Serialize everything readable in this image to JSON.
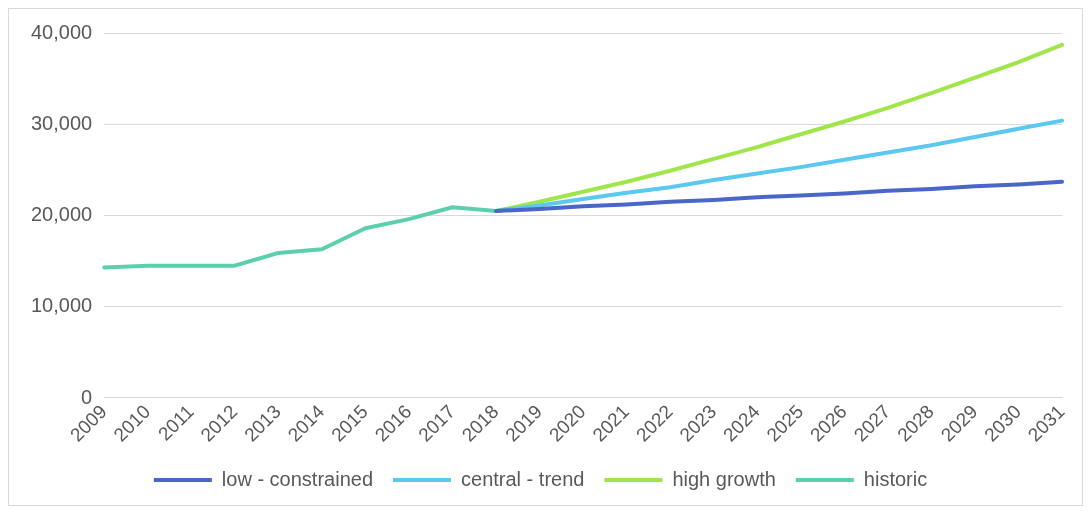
{
  "chart_data": {
    "type": "line",
    "categories": [
      "2009",
      "2010",
      "2011",
      "2012",
      "2013",
      "2014",
      "2015",
      "2016",
      "2017",
      "2018",
      "2019",
      "2020",
      "2021",
      "2022",
      "2023",
      "2024",
      "2025",
      "2026",
      "2027",
      "2028",
      "2029",
      "2030",
      "2031"
    ],
    "series": [
      {
        "name": "low - constrained",
        "color": "#4a66c8",
        "values": [
          null,
          null,
          null,
          null,
          null,
          null,
          null,
          null,
          null,
          20500,
          20700,
          21000,
          21200,
          21500,
          21700,
          22000,
          22200,
          22400,
          22700,
          22900,
          23200,
          23400,
          23700
        ]
      },
      {
        "name": "central - trend",
        "color": "#5bc8f0",
        "values": [
          null,
          null,
          null,
          null,
          null,
          null,
          null,
          null,
          null,
          20500,
          21100,
          21800,
          22500,
          23100,
          23900,
          24600,
          25300,
          26100,
          26900,
          27700,
          28600,
          29500,
          30400
        ]
      },
      {
        "name": "high growth",
        "color": "#a0e64a",
        "values": [
          null,
          null,
          null,
          null,
          null,
          null,
          null,
          null,
          null,
          20500,
          21500,
          22600,
          23700,
          24900,
          26200,
          27500,
          28900,
          30300,
          31800,
          33400,
          35100,
          36800,
          38700
        ]
      },
      {
        "name": "historic",
        "color": "#5ccfae",
        "values": [
          14300,
          14500,
          14500,
          14500,
          15900,
          16300,
          18600,
          19600,
          20900,
          20500,
          null,
          null,
          null,
          null,
          null,
          null,
          null,
          null,
          null,
          null,
          null,
          null,
          null
        ]
      }
    ],
    "ylim": [
      0,
      40000
    ],
    "yticks": [
      {
        "value": 0,
        "label": "0"
      },
      {
        "value": 10000,
        "label": "10,000"
      },
      {
        "value": 20000,
        "label": "20,000"
      },
      {
        "value": 30000,
        "label": "30,000"
      },
      {
        "value": 40000,
        "label": "40,000"
      }
    ],
    "grid": "y",
    "legend": "bottom",
    "marker": "none",
    "line_style": "solid"
  }
}
